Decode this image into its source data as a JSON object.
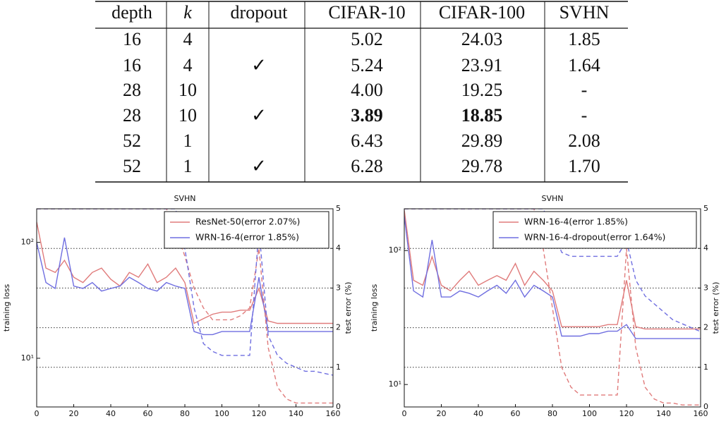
{
  "table": {
    "header": [
      "depth",
      "k",
      "dropout",
      "CIFAR-10",
      "CIFAR-100",
      "SVHN"
    ],
    "rows": [
      [
        "16",
        "4",
        null,
        "5.02",
        "24.03",
        "1.85"
      ],
      [
        "16",
        "4",
        "✓",
        "5.24",
        "23.91",
        "1.64"
      ],
      [
        "28",
        "10",
        null,
        "4.00",
        "19.25",
        "-"
      ],
      [
        "28",
        "10",
        "✓",
        "3.89",
        "18.85",
        "-"
      ],
      [
        "52",
        "1",
        null,
        "6.43",
        "29.89",
        "2.08"
      ],
      [
        "52",
        "1",
        "✓",
        "6.28",
        "29.78",
        "1.70"
      ]
    ],
    "bold_cells": [
      [
        3,
        3
      ],
      [
        3,
        4
      ]
    ]
  },
  "chart_data": [
    {
      "type": "line",
      "title": "SVHN",
      "ylabel": "training loss",
      "y2label": "test error (%)",
      "x": [
        0,
        5,
        10,
        15,
        20,
        25,
        30,
        35,
        40,
        45,
        50,
        55,
        60,
        65,
        70,
        75,
        80,
        85,
        90,
        95,
        100,
        105,
        110,
        115,
        120,
        125,
        130,
        135,
        140,
        145,
        150,
        155,
        160
      ],
      "xlim": [
        0,
        160
      ],
      "xticks": [
        0,
        20,
        40,
        60,
        80,
        100,
        120,
        140,
        160
      ],
      "ylim": [
        3.8,
        195
      ],
      "yscale": "log",
      "yticks": [
        {
          "value": 10,
          "label": "10¹"
        },
        {
          "value": 100,
          "label": "10²"
        }
      ],
      "y2lim": [
        0,
        5
      ],
      "y2ticks": [
        0,
        1,
        2,
        3,
        4,
        5
      ],
      "grid": true,
      "legend": "upper right",
      "series": [
        {
          "name": "ResNet-50(error 2.07%)",
          "color": "#e07b7b",
          "values": [
            150,
            60,
            55,
            70,
            50,
            45,
            55,
            60,
            48,
            42,
            55,
            50,
            65,
            45,
            50,
            60,
            45,
            20,
            22,
            24,
            25,
            25,
            26,
            26,
            40,
            21,
            20,
            20,
            20,
            20,
            20,
            20,
            20
          ]
        },
        {
          "name": "WRN-16-4(error 1.85%)",
          "color": "#6f6ee0",
          "values": [
            100,
            45,
            40,
            110,
            42,
            40,
            45,
            38,
            40,
            42,
            50,
            45,
            40,
            38,
            45,
            42,
            40,
            17,
            16,
            16,
            17,
            17,
            17,
            17,
            50,
            17,
            17,
            17,
            17,
            17,
            17,
            17,
            17
          ]
        },
        {
          "color": "#e07b7b",
          "axis": "y2",
          "linestyle": "dashed",
          "values": [
            5,
            5,
            5,
            5,
            5,
            5,
            5,
            5,
            5,
            5,
            5,
            5,
            5,
            5,
            5,
            4.5,
            3.8,
            3,
            2.5,
            2.2,
            2.2,
            2.2,
            2.3,
            2.5,
            4,
            1.5,
            0.5,
            0.2,
            0.1,
            0.1,
            0.1,
            0.1,
            0.1
          ]
        },
        {
          "color": "#6f6ee0",
          "axis": "y2",
          "linestyle": "dashed",
          "values": [
            5,
            5,
            5,
            5,
            5,
            5,
            5,
            5,
            5,
            5,
            5,
            5,
            5,
            5,
            5,
            5,
            4,
            2.5,
            1.6,
            1.4,
            1.3,
            1.3,
            1.3,
            1.3,
            4.5,
            1.8,
            1.3,
            1.1,
            1,
            0.9,
            0.9,
            0.85,
            0.8
          ]
        }
      ]
    },
    {
      "type": "line",
      "title": "SVHN",
      "ylabel": "training loss",
      "y2label": "test error (%)",
      "x": [
        0,
        5,
        10,
        15,
        20,
        25,
        30,
        35,
        40,
        45,
        50,
        55,
        60,
        65,
        70,
        75,
        80,
        85,
        90,
        95,
        100,
        105,
        110,
        115,
        120,
        125,
        130,
        135,
        140,
        145,
        150,
        155,
        160
      ],
      "xlim": [
        0,
        160
      ],
      "xticks": [
        0,
        20,
        40,
        60,
        80,
        100,
        120,
        140,
        160
      ],
      "ylim": [
        6.8,
        205
      ],
      "yscale": "log",
      "yticks": [
        {
          "value": 10,
          "label": "10¹"
        },
        {
          "value": 100,
          "label": "10²"
        }
      ],
      "y2lim": [
        0,
        5
      ],
      "y2ticks": [
        0,
        1,
        2,
        3,
        4,
        5
      ],
      "grid": true,
      "legend": "upper right",
      "series": [
        {
          "name": "WRN-16-4(error 1.85%)",
          "color": "#e07b7b",
          "values": [
            200,
            60,
            55,
            90,
            55,
            50,
            60,
            70,
            55,
            60,
            65,
            60,
            80,
            55,
            70,
            60,
            50,
            27,
            27,
            27,
            27,
            27,
            28,
            28,
            60,
            27,
            26,
            26,
            26,
            26,
            26,
            26,
            26
          ]
        },
        {
          "name": "WRN-16-4-dropout(error 1.64%)",
          "color": "#6f6ee0",
          "values": [
            180,
            50,
            45,
            120,
            45,
            45,
            50,
            48,
            45,
            50,
            55,
            48,
            60,
            45,
            55,
            50,
            45,
            23,
            23,
            23,
            24,
            24,
            25,
            25,
            28,
            22,
            22,
            22,
            22,
            22,
            22,
            22,
            22
          ]
        },
        {
          "color": "#e07b7b",
          "axis": "y2",
          "linestyle": "dashed",
          "values": [
            5,
            5,
            5,
            5,
            5,
            5,
            5,
            5,
            5,
            5,
            5,
            5,
            5,
            5,
            5,
            4,
            2.5,
            1,
            0.5,
            0.3,
            0.3,
            0.3,
            0.3,
            0.3,
            4,
            1.5,
            0.5,
            0.2,
            0.1,
            0.1,
            0.05,
            0.05,
            0.05
          ]
        },
        {
          "color": "#6f6ee0",
          "axis": "y2",
          "linestyle": "dashed",
          "values": [
            5,
            5,
            5,
            5,
            5,
            5,
            5,
            5,
            5,
            5,
            5,
            5,
            5,
            5,
            5,
            5,
            4.5,
            3.9,
            3.8,
            3.8,
            3.8,
            3.8,
            3.8,
            3.8,
            4.2,
            3.2,
            2.8,
            2.6,
            2.4,
            2.2,
            2.1,
            2.0,
            1.9
          ]
        }
      ]
    }
  ]
}
